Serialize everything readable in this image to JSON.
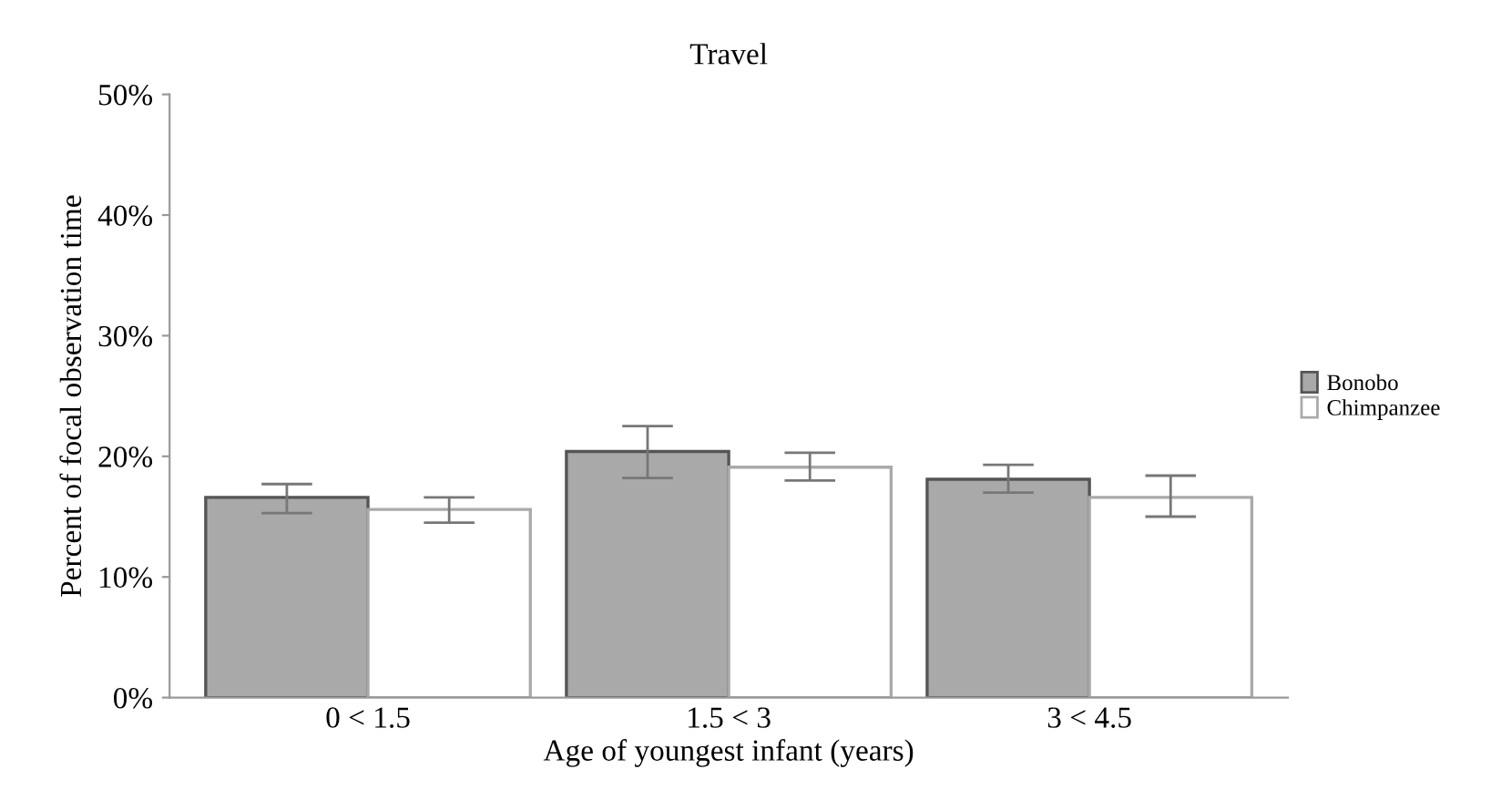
{
  "chart_data": {
    "type": "bar",
    "title": "Travel",
    "xlabel": "Age of youngest infant (years)",
    "ylabel": "Percent of focal observation time",
    "categories": [
      "0 < 1.5",
      "1.5 < 3",
      "3 < 4.5"
    ],
    "series": [
      {
        "name": "Bonobo",
        "color": "#a9a9a9",
        "values": [
          16.6,
          20.4,
          18.1
        ],
        "errors": [
          [
            15.3,
            17.7
          ],
          [
            18.2,
            22.5
          ],
          [
            17.0,
            19.3
          ]
        ]
      },
      {
        "name": "Chimpanzee",
        "color": "#ffffff",
        "values": [
          15.6,
          19.1,
          16.6
        ],
        "errors": [
          [
            14.5,
            16.6
          ],
          [
            18.0,
            20.3
          ],
          [
            15.0,
            18.4
          ]
        ]
      }
    ],
    "ylim": [
      0,
      50
    ],
    "yticks": [
      {
        "value": 0,
        "label": "0%"
      },
      {
        "value": 10,
        "label": "10%"
      },
      {
        "value": 20,
        "label": "20%"
      },
      {
        "value": 30,
        "label": "30%"
      },
      {
        "value": 40,
        "label": "40%"
      },
      {
        "value": 50,
        "label": "50%"
      }
    ],
    "grid": false,
    "legend": "right"
  }
}
